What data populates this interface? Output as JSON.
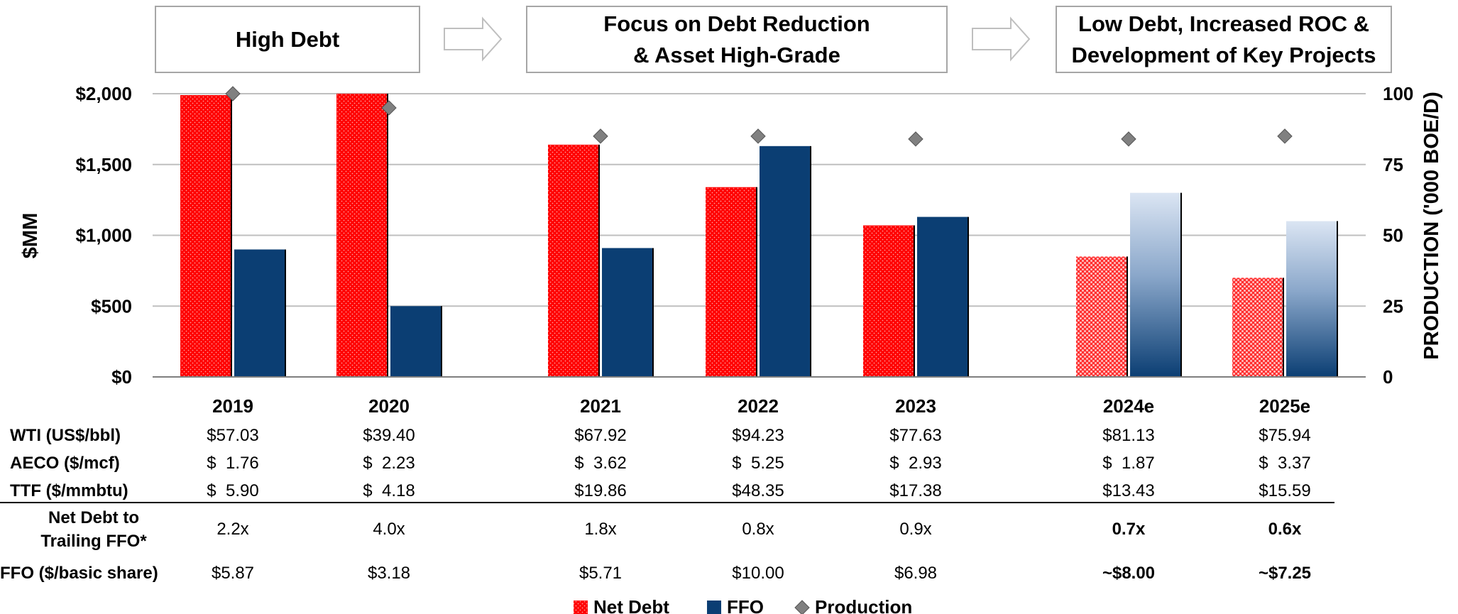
{
  "phases": [
    {
      "label": "High Debt"
    },
    {
      "label": "Focus on Debt Reduction\n& Asset High-Grade"
    },
    {
      "label": "Low Debt, Increased ROC &\nDevelopment of Key Projects"
    }
  ],
  "chart_data": {
    "type": "bar",
    "categories": [
      "2019",
      "2020",
      "2021",
      "2022",
      "2023",
      "2024e",
      "2025e"
    ],
    "estimate_from_index": 5,
    "ylabel": "$MM",
    "ylim": [
      0,
      2000
    ],
    "yticks": [
      "$0",
      "$500",
      "$1,000",
      "$1,500",
      "$2,000"
    ],
    "y2label": "PRODUCTION ('000 BOE/D)",
    "y2lim": [
      0,
      100
    ],
    "y2ticks": [
      "0",
      "25",
      "50",
      "75",
      "100"
    ],
    "grid": true,
    "legend_position": "bottom",
    "series": [
      {
        "name": "Net Debt",
        "axis": "left",
        "kind": "bar",
        "color": "#ff0000",
        "values": [
          1990,
          2000,
          1640,
          1340,
          1070,
          850,
          700
        ]
      },
      {
        "name": "FFO",
        "axis": "left",
        "kind": "bar",
        "color": "#0b3e73",
        "values": [
          900,
          500,
          910,
          1630,
          1130,
          1300,
          1100
        ]
      },
      {
        "name": "Production",
        "axis": "right",
        "kind": "marker",
        "color": "#808080",
        "values": [
          100,
          95,
          85,
          85,
          84,
          84,
          85
        ]
      }
    ]
  },
  "table": {
    "rows": [
      {
        "label": "WTI (US$/bbl)",
        "bold_from": 99,
        "values": [
          "$57.03",
          "$39.40",
          "$67.92",
          "$94.23",
          "$77.63",
          "$81.13",
          "$75.94"
        ]
      },
      {
        "label": "AECO ($/mcf)",
        "bold_from": 99,
        "values": [
          "$  1.76",
          "$  2.23",
          "$  3.62",
          "$  5.25",
          "$  2.93",
          "$  1.87",
          "$  3.37"
        ]
      },
      {
        "label": "TTF ($/mmbtu)",
        "bold_from": 99,
        "values": [
          "$  5.90",
          "$  4.18",
          "$19.86",
          "$48.35",
          "$17.38",
          "$13.43",
          "$15.59"
        ]
      },
      {
        "label": "Net Debt to\nTrailing FFO*",
        "bold_from": 5,
        "values": [
          "2.2x",
          "4.0x",
          "1.8x",
          "0.8x",
          "0.9x",
          "0.7x",
          "0.6x"
        ]
      },
      {
        "label": "FFO ($/basic share)",
        "bold_from": 5,
        "values": [
          "$5.87",
          "$3.18",
          "$5.71",
          "$10.00",
          "$6.98",
          "~$8.00",
          "~$7.25"
        ]
      }
    ]
  },
  "colors": {
    "net_debt": "#ff0000",
    "ffo": "#0b3e73",
    "production": "#808080",
    "grid": "#bfbfbf",
    "box_border": "#a6a6a6"
  }
}
